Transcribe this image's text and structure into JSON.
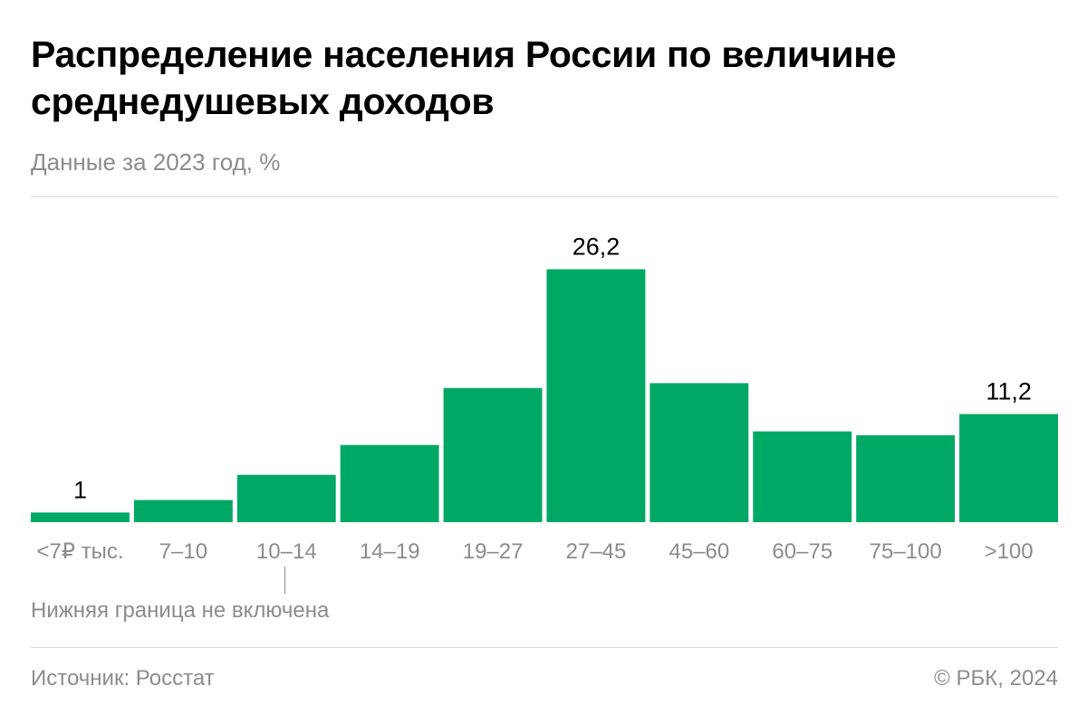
{
  "header": {
    "title": "Распределение населения России по величине среднедушевых доходов",
    "subtitle": "Данные за 2023 год, %"
  },
  "chart_data": {
    "type": "bar",
    "categories": [
      "<7₽ тыс.",
      "7–10",
      "10–14",
      "14–19",
      "19–27",
      "27–45",
      "45–60",
      "60–75",
      "75–100",
      ">100"
    ],
    "values": [
      1.0,
      2.3,
      4.9,
      8.0,
      13.9,
      26.2,
      14.4,
      9.4,
      9.0,
      11.2
    ],
    "value_labels": [
      "1",
      "",
      "",
      "",
      "",
      "26,2",
      "",
      "",
      "",
      "11,2"
    ],
    "ylim": [
      0,
      30
    ],
    "bar_color": "#00a866",
    "grid": false,
    "annotation": "Нижняя граница не включена"
  },
  "footer": {
    "source": "Источник: Росстат",
    "copyright": "© РБК, 2024"
  }
}
